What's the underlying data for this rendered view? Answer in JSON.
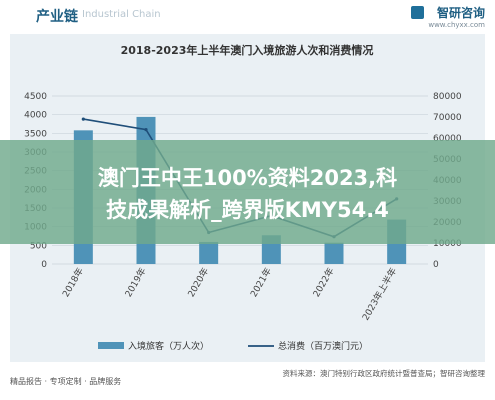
{
  "header": {
    "section_title": "产业链",
    "watermark_sub": "Industrial Chain",
    "logo_name": "智研咨询",
    "logo_url": "www.chyxx.com"
  },
  "chart_data": {
    "type": "bar",
    "title": "2018-2023年上半年澳门入境旅游人次和消费情况",
    "categories": [
      "2018年",
      "2019年",
      "2020年",
      "2021年",
      "2022年",
      "2023年上半年"
    ],
    "series": [
      {
        "name": "入境旅客（万人次）",
        "type": "bar",
        "axis": "left",
        "color": "#4f93b8",
        "values": [
          3580,
          3940,
          590,
          770,
          570,
          1190
        ]
      },
      {
        "name": "总消费（百万澳门元）",
        "type": "line",
        "axis": "right",
        "color": "#1f4e79",
        "values": [
          69000,
          64000,
          15000,
          23000,
          13000,
          31000
        ]
      }
    ],
    "y_left": {
      "ylim": [
        0,
        4500
      ],
      "ticks": [
        "0",
        "500",
        "1000",
        "1500",
        "2000",
        "2500",
        "3000",
        "3500",
        "4000",
        "4500"
      ]
    },
    "y_right": {
      "ylim": [
        0,
        80000
      ],
      "ticks": [
        "0",
        "10000",
        "20000",
        "30000",
        "40000",
        "50000",
        "60000",
        "70000",
        "80000"
      ]
    },
    "grid": true,
    "legend_position": "bottom"
  },
  "footer": {
    "left": "精品报告 · 专项定制 · 品牌服务",
    "right_source": "资料来源：澳门特别行政区政府统计暨普查局；智研咨询整理",
    "right_brand": "智研咨询"
  },
  "banner": {
    "line1": "澳门王中王100%资料2023,科",
    "line2": "技成果解析_跨界版KMY54.4"
  }
}
